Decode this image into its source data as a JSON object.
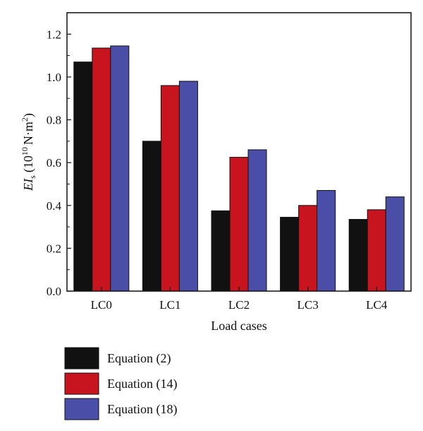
{
  "chart_data": {
    "type": "bar",
    "categories": [
      "LC0",
      "LC1",
      "LC2",
      "LC3",
      "LC4"
    ],
    "series": [
      {
        "name": "Equation (2)",
        "color": "#111111",
        "values": [
          1.07,
          0.7,
          0.375,
          0.345,
          0.335
        ]
      },
      {
        "name": "Equation (14)",
        "color": "#c8141e",
        "values": [
          1.135,
          0.96,
          0.625,
          0.4,
          0.38
        ]
      },
      {
        "name": "Equation (18)",
        "color": "#4a4ea6",
        "values": [
          1.145,
          0.98,
          0.66,
          0.47,
          0.44
        ]
      }
    ],
    "xlabel": "Load cases",
    "ylabel": {
      "main": "EI",
      "sub": "s",
      "unit_open": "(10",
      "exp": "10",
      "unit_mid": "N·m",
      "exp2": "2",
      "unit_close": ")"
    },
    "ylim": [
      0,
      1.3
    ],
    "yticks": [
      "0.0",
      "0.2",
      "0.4",
      "0.6",
      "0.8",
      "1.0",
      "1.2"
    ],
    "grid": false,
    "legend_position": "bottom-left"
  }
}
